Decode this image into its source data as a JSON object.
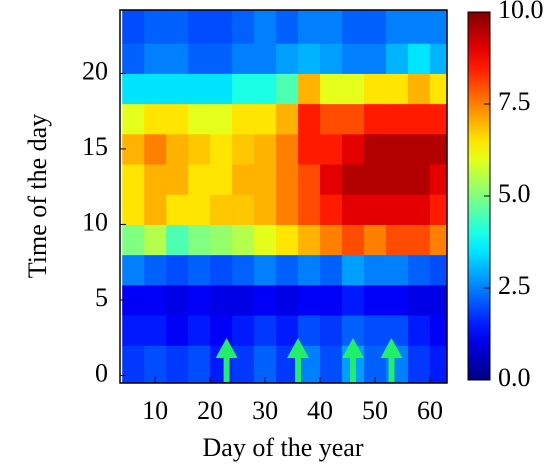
{
  "chart_data": {
    "type": "heatmap",
    "xlabel": "Day of the year",
    "ylabel": "Time of the day",
    "xlim": [
      3.6,
      63.1
    ],
    "xticks": [
      10,
      20,
      30,
      40,
      50,
      60
    ],
    "ylim": [
      -0.5,
      24.2
    ],
    "yticks": [
      0,
      5,
      10,
      15,
      20
    ],
    "xbins": [
      4,
      8,
      12,
      16,
      20,
      24,
      28,
      32,
      36,
      40,
      44,
      48,
      52,
      56,
      60,
      64
    ],
    "ybins": [
      -0.5,
      2,
      4,
      6,
      8,
      10,
      12,
      14,
      16,
      18,
      20,
      22,
      24.2
    ],
    "colormap": "jet",
    "zlim": [
      0,
      10
    ],
    "zticks": [
      {
        "value": 0,
        "label": "0.0"
      },
      {
        "value": 2.5,
        "label": "2.5"
      },
      {
        "value": 5,
        "label": "5.0"
      },
      {
        "value": 7.5,
        "label": "7.5"
      },
      {
        "value": 10,
        "label": "10.0"
      }
    ],
    "z": [
      [
        1.8,
        2,
        1.8,
        2,
        1.5,
        1.8,
        2.2,
        1.8,
        2.5,
        2,
        2.8,
        2.2,
        2.5,
        1.8,
        1.5
      ],
      [
        1.5,
        1.5,
        1.2,
        1.5,
        1.2,
        1.5,
        1.8,
        1.5,
        2,
        1.8,
        2.2,
        2,
        2,
        1.5,
        1.2
      ],
      [
        1.2,
        1.2,
        1,
        1.2,
        1,
        1,
        1.2,
        1,
        1.2,
        1.2,
        1.5,
        1.2,
        1.2,
        1,
        1
      ],
      [
        2.5,
        2.2,
        2,
        2.2,
        2,
        2.2,
        2.5,
        2.2,
        2.5,
        2.2,
        2.8,
        2.5,
        2.5,
        2.2,
        2
      ],
      [
        5,
        5.5,
        4.5,
        5,
        5.2,
        5.5,
        6,
        6.5,
        7,
        7.5,
        8,
        7.5,
        8,
        8,
        7.5
      ],
      [
        6.5,
        7,
        6.5,
        6.5,
        6.8,
        6.8,
        7,
        7.5,
        8,
        8.5,
        9,
        9,
        9,
        9,
        8.5
      ],
      [
        6.5,
        7,
        7,
        6.5,
        6.5,
        7,
        7,
        7.5,
        8,
        9,
        9.5,
        9.5,
        9.5,
        9.5,
        9
      ],
      [
        7,
        7.5,
        7,
        6.8,
        6.5,
        6.8,
        7,
        7.5,
        8.5,
        8.5,
        9,
        9.5,
        9.5,
        9.5,
        9.5
      ],
      [
        6,
        6.5,
        6.5,
        6,
        6,
        6.5,
        6.5,
        7,
        8.5,
        8,
        8,
        8.5,
        8.5,
        8.5,
        8.5
      ],
      [
        3.5,
        3.5,
        3.5,
        3.5,
        3.5,
        4,
        4,
        4.5,
        7,
        6,
        6,
        6.5,
        6.5,
        7,
        6.5
      ],
      [
        2.2,
        2.5,
        2.5,
        2.2,
        2.2,
        2.5,
        2.5,
        2.8,
        3,
        2.8,
        2.5,
        2.5,
        3,
        3.5,
        3
      ],
      [
        2,
        2.2,
        2.2,
        2,
        2,
        2.2,
        2.5,
        2.2,
        2.5,
        2.5,
        2.2,
        2.2,
        2.5,
        2.5,
        2.5
      ]
    ],
    "arrows": [
      23,
      36,
      46,
      53
    ],
    "arrow_color": "#22ee66"
  }
}
